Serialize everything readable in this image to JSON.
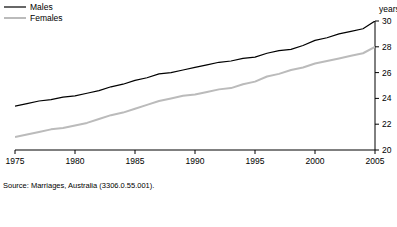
{
  "chart_data": {
    "type": "line",
    "y_label": "years",
    "annotations": [
      "Source: Marriages, Australia (3306.0.55.001)."
    ],
    "x": [
      1975,
      1976,
      1977,
      1978,
      1979,
      1980,
      1981,
      1982,
      1983,
      1984,
      1985,
      1986,
      1987,
      1988,
      1989,
      1990,
      1991,
      1992,
      1993,
      1994,
      1995,
      1996,
      1997,
      1998,
      1999,
      2000,
      2001,
      2002,
      2003,
      2004,
      2005
    ],
    "series": [
      {
        "name": "Males",
        "color": "#000000",
        "values": [
          23.4,
          23.6,
          23.8,
          23.9,
          24.1,
          24.2,
          24.4,
          24.6,
          24.9,
          25.1,
          25.4,
          25.6,
          25.9,
          26.0,
          26.2,
          26.4,
          26.6,
          26.8,
          26.9,
          27.1,
          27.2,
          27.5,
          27.7,
          27.8,
          28.1,
          28.5,
          28.7,
          29.0,
          29.2,
          29.4,
          30.0
        ]
      },
      {
        "name": "Females",
        "color": "#bbbbbb",
        "values": [
          21.0,
          21.2,
          21.4,
          21.6,
          21.7,
          21.9,
          22.1,
          22.4,
          22.7,
          22.9,
          23.2,
          23.5,
          23.8,
          24.0,
          24.2,
          24.3,
          24.5,
          24.7,
          24.8,
          25.1,
          25.3,
          25.7,
          25.9,
          26.2,
          26.4,
          26.7,
          26.9,
          27.1,
          27.3,
          27.5,
          28.0
        ]
      }
    ],
    "xlim": [
      1975,
      2005
    ],
    "xticks": [
      1975,
      1980,
      1985,
      1990,
      1995,
      2000,
      2005
    ],
    "ylim": [
      20,
      30
    ],
    "yticks": [
      20,
      22,
      24,
      26,
      28,
      30
    ],
    "grid": false,
    "legend": "top-left"
  }
}
